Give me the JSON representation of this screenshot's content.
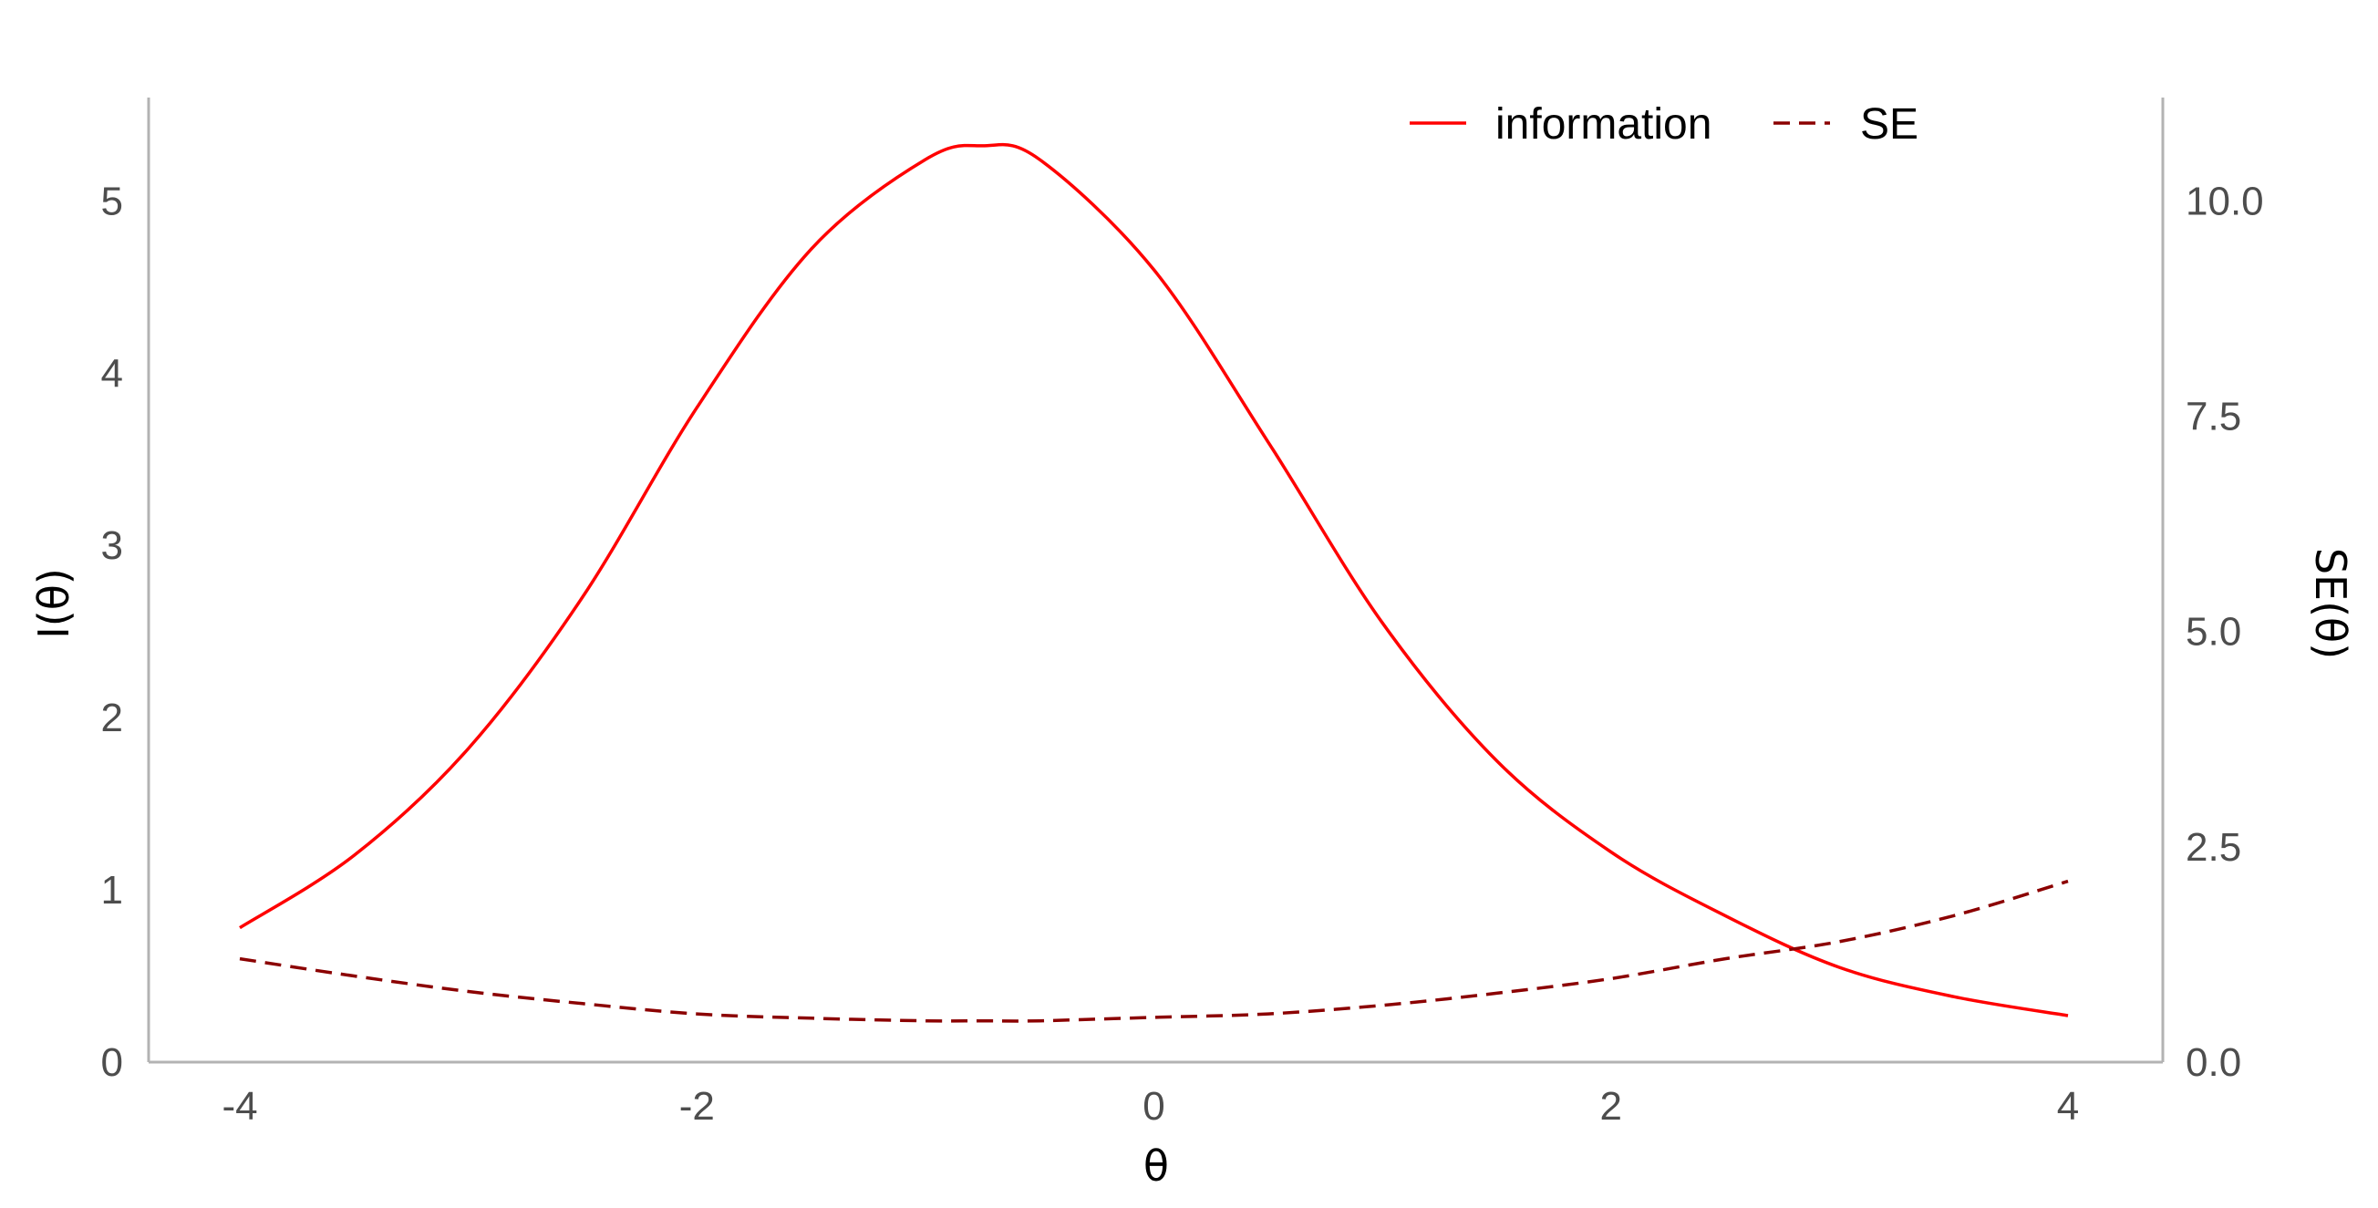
{
  "chart_data": {
    "type": "line",
    "title": "",
    "xlabel": "θ",
    "ylabel": "I(θ)",
    "y2label": "SE(θ)",
    "xlim": [
      -4,
      4
    ],
    "ylim": [
      0,
      5.6
    ],
    "y2lim": [
      0,
      11.2
    ],
    "xticks": [
      -4,
      -2,
      0,
      2,
      4
    ],
    "xtick_labels": [
      "-4",
      "-2",
      "0",
      "2",
      "4"
    ],
    "yticks": [
      0,
      1,
      2,
      3,
      4,
      5
    ],
    "ytick_labels": [
      "0",
      "1",
      "2",
      "3",
      "4",
      "5"
    ],
    "y2ticks": [
      0,
      2.5,
      5,
      7.5,
      10
    ],
    "y2tick_labels": [
      "0.0",
      "2.5",
      "5.0",
      "7.5",
      "10.0"
    ],
    "grid": false,
    "legend_position": "top",
    "x": [
      -4,
      -3.5,
      -3,
      -2.5,
      -2,
      -1.5,
      -1,
      -0.75,
      -0.5,
      0,
      0.5,
      1,
      1.5,
      2,
      2.5,
      3,
      3.5,
      4
    ],
    "series": [
      {
        "name": "information",
        "axis": "left",
        "color": "#ff0000",
        "style": "solid",
        "values": [
          0.78,
          1.2,
          1.82,
          2.7,
          3.8,
          4.72,
          5.24,
          5.32,
          5.24,
          4.6,
          3.6,
          2.55,
          1.75,
          1.22,
          0.85,
          0.55,
          0.38,
          0.27
        ]
      },
      {
        "name": "SE",
        "axis": "right",
        "color": "#8b0000",
        "style": "dashed",
        "values": [
          1.2,
          1.0,
          0.82,
          0.68,
          0.56,
          0.51,
          0.48,
          0.48,
          0.48,
          0.52,
          0.56,
          0.66,
          0.8,
          0.97,
          1.2,
          1.4,
          1.7,
          2.1
        ]
      }
    ]
  }
}
